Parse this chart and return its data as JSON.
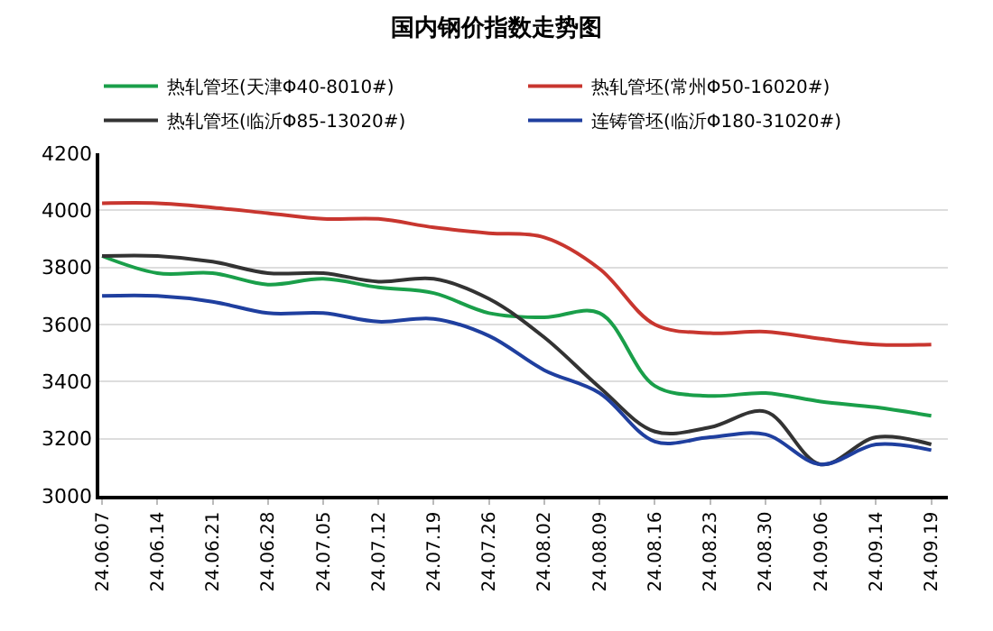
{
  "chart_data": {
    "type": "line",
    "title": "国内钢价指数走势图",
    "categories": [
      "24.06.07",
      "24.06.14",
      "24.06.21",
      "24.06.28",
      "24.07.05",
      "24.07.12",
      "24.07.19",
      "24.07.26",
      "24.08.02",
      "24.08.09",
      "24.08.16",
      "24.08.23",
      "24.08.30",
      "24.09.06",
      "24.09.14",
      "24.09.19"
    ],
    "series": [
      {
        "name": "热轧管坯(天津Φ40-8010#)",
        "color": "#1a9f4a",
        "values": [
          3840,
          3780,
          3780,
          3740,
          3760,
          3730,
          3710,
          3640,
          3625,
          3640,
          3385,
          3350,
          3360,
          3330,
          3310,
          3280
        ]
      },
      {
        "name": "热轧管坯(常州Φ50-16020#)",
        "color": "#c8362f",
        "values": [
          4025,
          4025,
          4010,
          3990,
          3970,
          3970,
          3940,
          3920,
          3905,
          3795,
          3600,
          3570,
          3575,
          3550,
          3530,
          3530
        ]
      },
      {
        "name": "热轧管坯(临沂Φ85-13020#)",
        "color": "#333333",
        "values": [
          3840,
          3840,
          3820,
          3780,
          3780,
          3750,
          3760,
          3690,
          3555,
          3380,
          3225,
          3240,
          3295,
          3110,
          3205,
          3180
        ]
      },
      {
        "name": "连铸管坯(临沂Φ180-31020#)",
        "color": "#1f3f9f",
        "values": [
          3700,
          3700,
          3680,
          3640,
          3640,
          3610,
          3620,
          3560,
          3440,
          3360,
          3190,
          3205,
          3215,
          3110,
          3180,
          3160
        ]
      }
    ],
    "ylim": [
      3000,
      4200
    ],
    "yticks": [
      3000,
      3200,
      3400,
      3600,
      3800,
      4000,
      4200
    ],
    "grid": "y",
    "legend": "top",
    "marker": "none",
    "line_style": "solid"
  }
}
